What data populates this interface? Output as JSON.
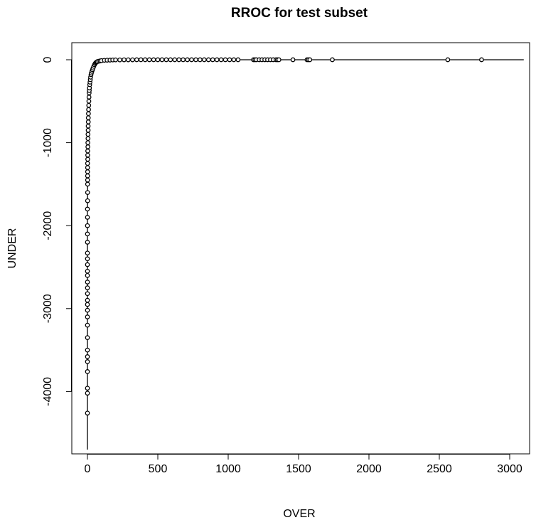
{
  "chart_data": {
    "type": "line",
    "title": "RROC for test subset",
    "xlabel": "OVER",
    "ylabel": "UNDER",
    "xlim": [
      0,
      3100
    ],
    "ylim": [
      -4700,
      100
    ],
    "x_ticks": [
      {
        "value": 0,
        "label": "0"
      },
      {
        "value": 500,
        "label": "500"
      },
      {
        "value": 1000,
        "label": "1000"
      },
      {
        "value": 1500,
        "label": "1500"
      },
      {
        "value": 2000,
        "label": "2000"
      },
      {
        "value": 2500,
        "label": "2500"
      },
      {
        "value": 3000,
        "label": "3000"
      }
    ],
    "y_ticks": [
      {
        "value": 0,
        "label": "0"
      },
      {
        "value": -1000,
        "label": "-1000"
      },
      {
        "value": -2000,
        "label": "-2000"
      },
      {
        "value": -3000,
        "label": "-3000"
      },
      {
        "value": -4000,
        "label": "-4000"
      }
    ],
    "grid": false,
    "legend": "none",
    "color": "#000000",
    "series": [
      {
        "line_extends_from_y": -4700,
        "line_extends_to_x": 3100,
        "x": [
          0,
          0,
          0,
          0,
          0,
          0,
          0,
          0,
          0,
          0,
          0,
          0,
          0,
          0,
          0,
          0,
          0,
          0,
          0,
          0,
          0,
          0,
          0,
          0,
          0,
          0,
          1,
          1,
          1,
          1,
          1,
          1,
          1,
          1,
          2,
          2,
          2,
          3,
          3,
          4,
          4,
          5,
          5,
          6,
          6,
          7,
          8,
          9,
          10,
          11,
          12,
          13,
          14,
          16,
          18,
          20,
          22,
          25,
          28,
          32,
          36,
          40,
          45,
          50,
          55,
          60,
          65,
          70,
          80,
          90,
          100,
          120,
          140,
          160,
          180,
          200,
          230,
          260,
          290,
          320,
          350,
          380,
          410,
          440,
          470,
          500,
          530,
          560,
          590,
          620,
          650,
          680,
          710,
          740,
          770,
          800,
          830,
          860,
          890,
          920,
          950,
          980,
          1010,
          1040,
          1070,
          1180,
          1190,
          1200,
          1220,
          1240,
          1260,
          1280,
          1300,
          1320,
          1340,
          1350,
          1360,
          1460,
          1560,
          1570,
          1580,
          1740,
          2560,
          2800
        ],
        "y": [
          -4260,
          -4020,
          -3960,
          -3760,
          -3640,
          -3580,
          -3500,
          -3350,
          -3200,
          -3100,
          -3020,
          -2950,
          -2900,
          -2820,
          -2750,
          -2680,
          -2600,
          -2550,
          -2470,
          -2400,
          -2330,
          -2200,
          -2100,
          -2000,
          -1900,
          -1800,
          -1700,
          -1600,
          -1500,
          -1450,
          -1400,
          -1350,
          -1300,
          -1250,
          -1200,
          -1150,
          -1100,
          -1050,
          -1000,
          -950,
          -900,
          -850,
          -800,
          -750,
          -700,
          -650,
          -600,
          -550,
          -500,
          -450,
          -400,
          -370,
          -340,
          -300,
          -270,
          -240,
          -210,
          -180,
          -160,
          -140,
          -120,
          -100,
          -80,
          -60,
          -45,
          -35,
          -28,
          -22,
          -18,
          -14,
          -10,
          -7,
          -5,
          -4,
          -3,
          -2,
          -2,
          -1,
          -1,
          -1,
          0,
          0,
          0,
          0,
          0,
          0,
          0,
          0,
          0,
          0,
          0,
          0,
          0,
          0,
          0,
          0,
          0,
          0,
          0,
          0,
          0,
          0,
          0,
          0,
          0,
          0,
          0,
          0,
          0,
          0,
          0,
          0,
          0,
          0,
          0,
          0,
          0,
          0,
          0,
          0,
          0,
          0,
          0,
          0
        ]
      }
    ]
  }
}
